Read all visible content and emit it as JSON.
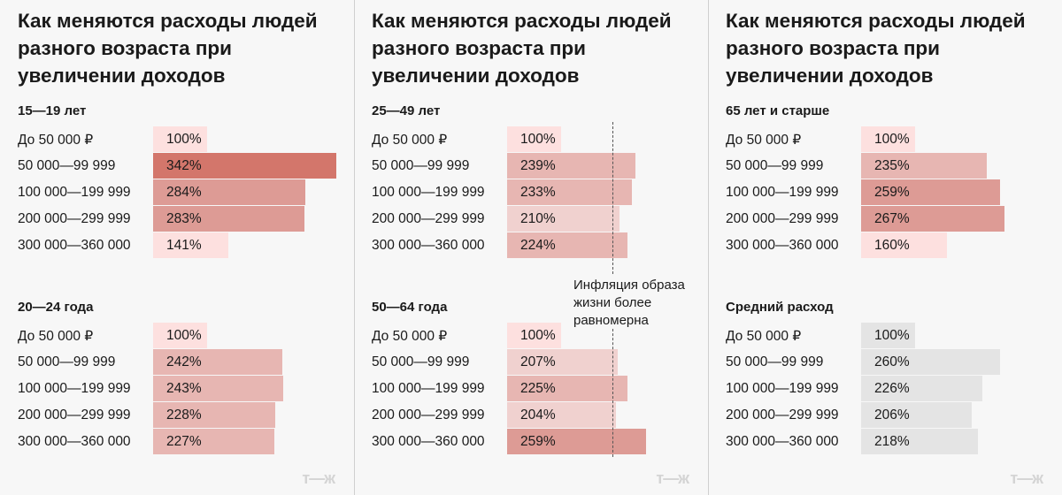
{
  "chart_data": [
    {
      "type": "bar",
      "title": "Как меняются расходы людей разного возраста при увеличении доходов",
      "categories": [
        "До 50 000 ₽",
        "50 000—99 999",
        "100 000—199 999",
        "200 000—299 999",
        "300 000—360 000"
      ],
      "groups": [
        {
          "name": "15—19 лет",
          "values": [
            100,
            342,
            284,
            283,
            141
          ],
          "labels": [
            "100%",
            "342%",
            "284%",
            "283%",
            "141%"
          ]
        },
        {
          "name": "20—24 года",
          "values": [
            100,
            242,
            243,
            228,
            227
          ],
          "labels": [
            "100%",
            "242%",
            "243%",
            "228%",
            "227%"
          ]
        }
      ]
    },
    {
      "type": "bar",
      "title": "Как меняются расходы людей разного возраста при увеличении доходов",
      "categories": [
        "До 50 000 ₽",
        "50 000—99 999",
        "100 000—199 999",
        "200 000—299 999",
        "300 000—360 000"
      ],
      "groups": [
        {
          "name": "25—49 лет",
          "values": [
            100,
            239,
            233,
            210,
            224
          ],
          "labels": [
            "100%",
            "239%",
            "233%",
            "210%",
            "224%"
          ]
        },
        {
          "name": "50—64 года",
          "values": [
            100,
            207,
            225,
            204,
            259
          ],
          "labels": [
            "100%",
            "207%",
            "225%",
            "204%",
            "259%"
          ]
        }
      ],
      "annotation": "Инфляция образа жизни более равномерна",
      "reference_line": 200
    },
    {
      "type": "bar",
      "title": "Как меняются расходы людей разного возраста при увеличении доходов",
      "categories": [
        "До 50 000 ₽",
        "50 000—99 999",
        "100 000—199 999",
        "200 000—299 999",
        "300 000—360 000"
      ],
      "groups": [
        {
          "name": "65 лет и старше",
          "values": [
            100,
            235,
            259,
            267,
            160
          ],
          "labels": [
            "100%",
            "235%",
            "259%",
            "267%",
            "160%"
          ]
        },
        {
          "name": "Средний расход",
          "values": [
            100,
            260,
            226,
            206,
            218
          ],
          "labels": [
            "100%",
            "260%",
            "226%",
            "206%",
            "218%"
          ],
          "gray": true
        }
      ]
    }
  ],
  "logo": "т—ж",
  "colors": {
    "light": "#fde0df",
    "pale": "#f0d1cf",
    "mid": "#e7b6b2",
    "strong": "#dd9b95",
    "max": "#d3766b",
    "gray": "#e4e4e4",
    "background": "#f7f7f7"
  }
}
